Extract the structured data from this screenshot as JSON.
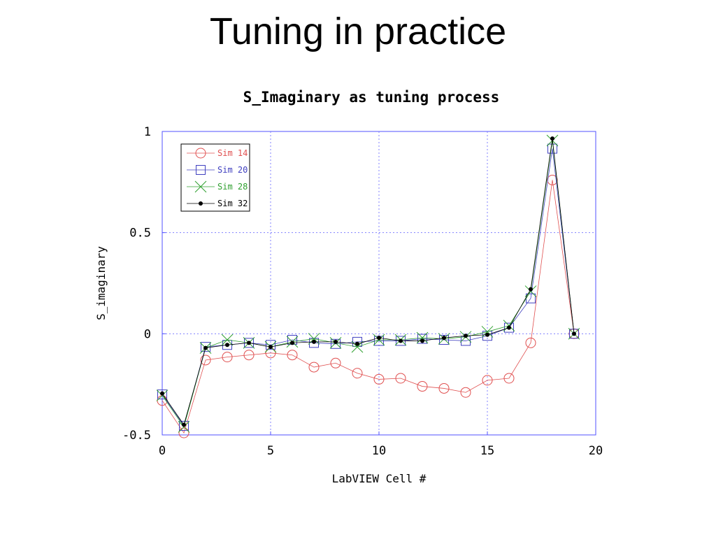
{
  "slide": {
    "title": "Tuning in practice"
  },
  "chart_data": {
    "type": "line",
    "title": "S_Imaginary as tuning process",
    "xlabel": "LabVIEW Cell #",
    "ylabel": "S_imaginary",
    "xlim": [
      0,
      20
    ],
    "ylim": [
      -0.5,
      1
    ],
    "xticks": [
      0,
      5,
      10,
      15,
      20
    ],
    "xtick_labels": [
      "0",
      "5",
      "10",
      "15",
      "20"
    ],
    "yticks": [
      -0.5,
      0,
      0.5,
      1
    ],
    "ytick_labels": [
      "-0.5",
      "0",
      "0.5",
      "1"
    ],
    "grid": true,
    "legend_position": "top-left",
    "x": [
      0,
      1,
      2,
      3,
      4,
      5,
      6,
      7,
      8,
      9,
      10,
      11,
      12,
      13,
      14,
      15,
      16,
      17,
      18,
      19
    ],
    "series": [
      {
        "name": "Sim 14",
        "color": "#e05050",
        "marker": "circle",
        "values": [
          -0.33,
          -0.49,
          -0.13,
          -0.115,
          -0.105,
          -0.095,
          -0.105,
          -0.165,
          -0.145,
          -0.195,
          -0.225,
          -0.22,
          -0.26,
          -0.27,
          -0.29,
          -0.23,
          -0.22,
          -0.045,
          0.76,
          0.0
        ]
      },
      {
        "name": "Sim 20",
        "color": "#4040c0",
        "marker": "square",
        "values": [
          -0.3,
          -0.455,
          -0.065,
          -0.055,
          -0.045,
          -0.055,
          -0.03,
          -0.045,
          -0.05,
          -0.04,
          -0.035,
          -0.035,
          -0.025,
          -0.03,
          -0.035,
          -0.01,
          0.03,
          0.175,
          0.915,
          0.0
        ]
      },
      {
        "name": "Sim 28",
        "color": "#30a030",
        "marker": "x",
        "values": [
          -0.305,
          -0.46,
          -0.07,
          -0.03,
          -0.045,
          -0.065,
          -0.04,
          -0.025,
          -0.045,
          -0.065,
          -0.03,
          -0.03,
          -0.02,
          -0.025,
          -0.015,
          0.01,
          0.04,
          0.21,
          0.955,
          0.0
        ]
      },
      {
        "name": "Sim 32",
        "color": "#000000",
        "marker": "dot",
        "values": [
          -0.295,
          -0.45,
          -0.07,
          -0.055,
          -0.045,
          -0.065,
          -0.045,
          -0.04,
          -0.04,
          -0.05,
          -0.02,
          -0.035,
          -0.035,
          -0.02,
          -0.01,
          -0.005,
          0.03,
          0.22,
          0.965,
          0.0
        ]
      }
    ]
  }
}
